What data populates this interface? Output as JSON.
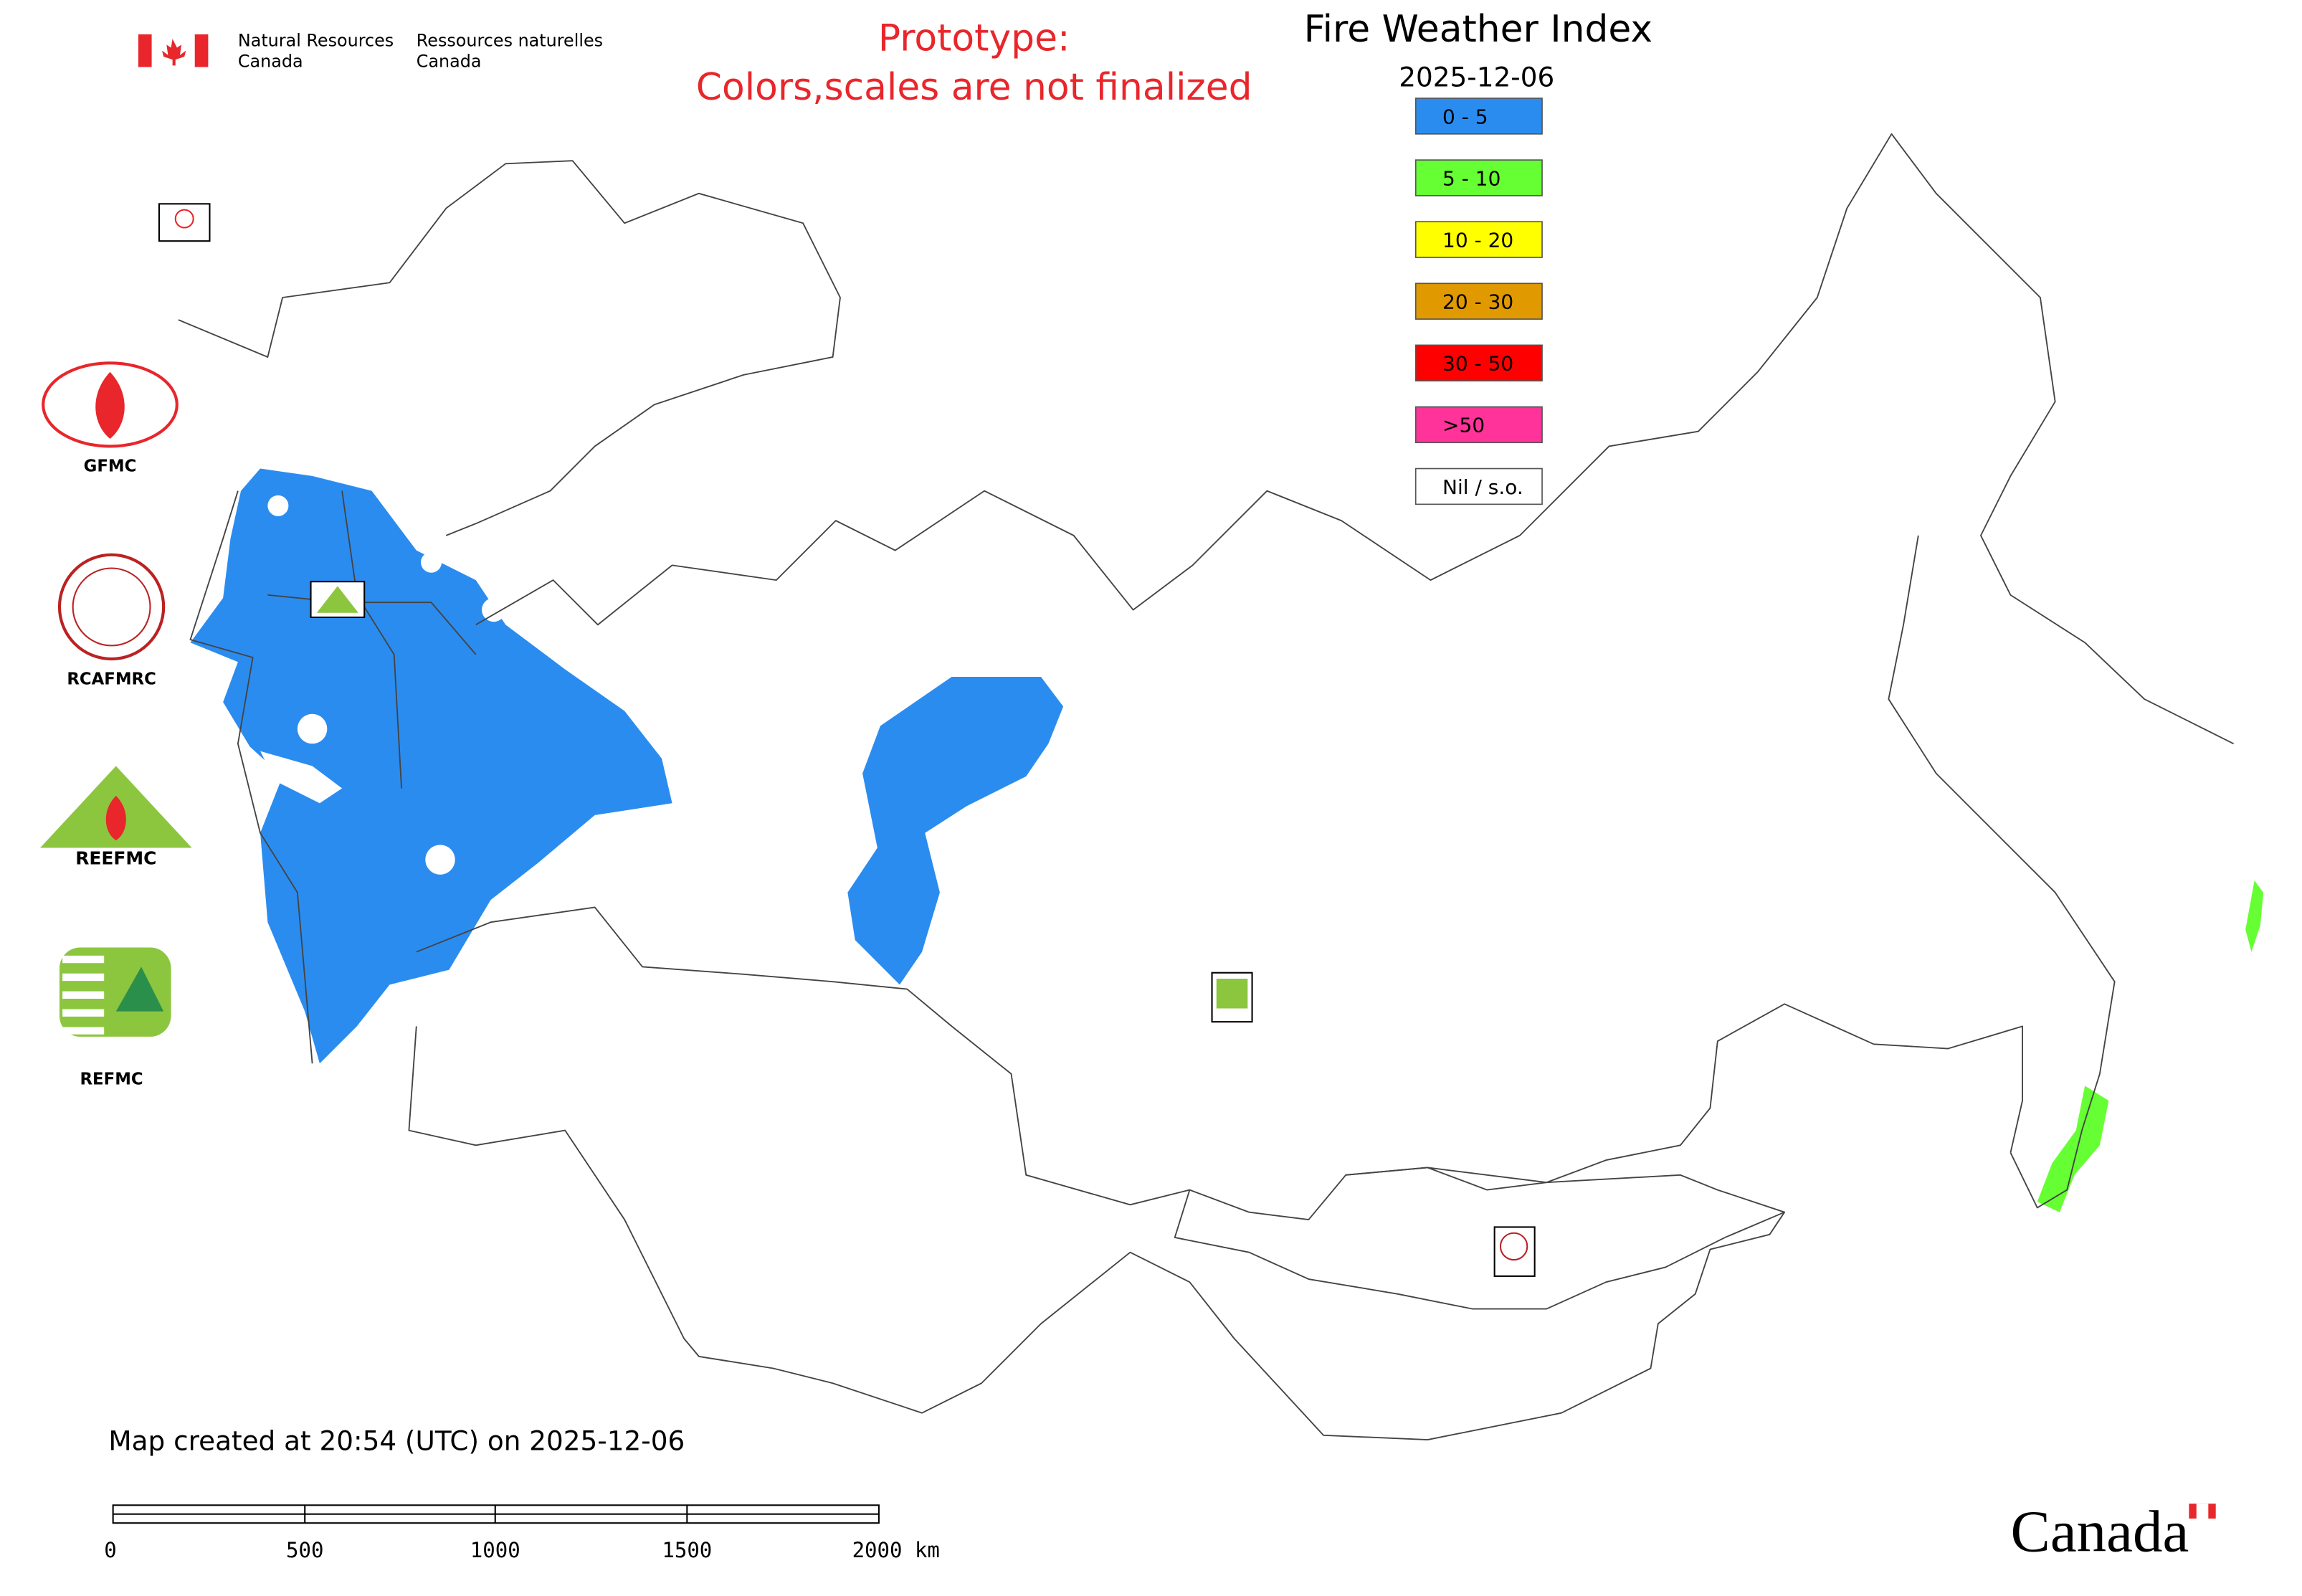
{
  "header": {
    "org_en_1": "Natural Resources",
    "org_en_2": "Canada",
    "org_fr_1": "Ressources naturelles",
    "org_fr_2": "Canada"
  },
  "notice": [
    "Prototype:",
    "Colors,scales are not finalized"
  ],
  "title": "Fire Weather Index",
  "date": "2025-12-06",
  "legend": [
    {
      "label": "0 - 5",
      "color": "#2b8cf0"
    },
    {
      "label": "5 - 10",
      "color": "#66ff33"
    },
    {
      "label": "10 - 20",
      "color": "#ffff00"
    },
    {
      "label": "20 - 30",
      "color": "#e09a00"
    },
    {
      "label": "30 - 50",
      "color": "#ff0000"
    },
    {
      "label": ">50",
      "color": "#ff3399"
    },
    {
      "label": "Nil / s.o.",
      "color": "#ffffff"
    }
  ],
  "logos": [
    "GFMC",
    "RCAFMRC",
    "REEFMC",
    "REFMC"
  ],
  "footer": "Map created at 20:54 (UTC) on 2025-12-06",
  "scale_bar": [
    "0",
    "500",
    "1000",
    "1500",
    "2000 km"
  ],
  "wordmark": "Canada"
}
